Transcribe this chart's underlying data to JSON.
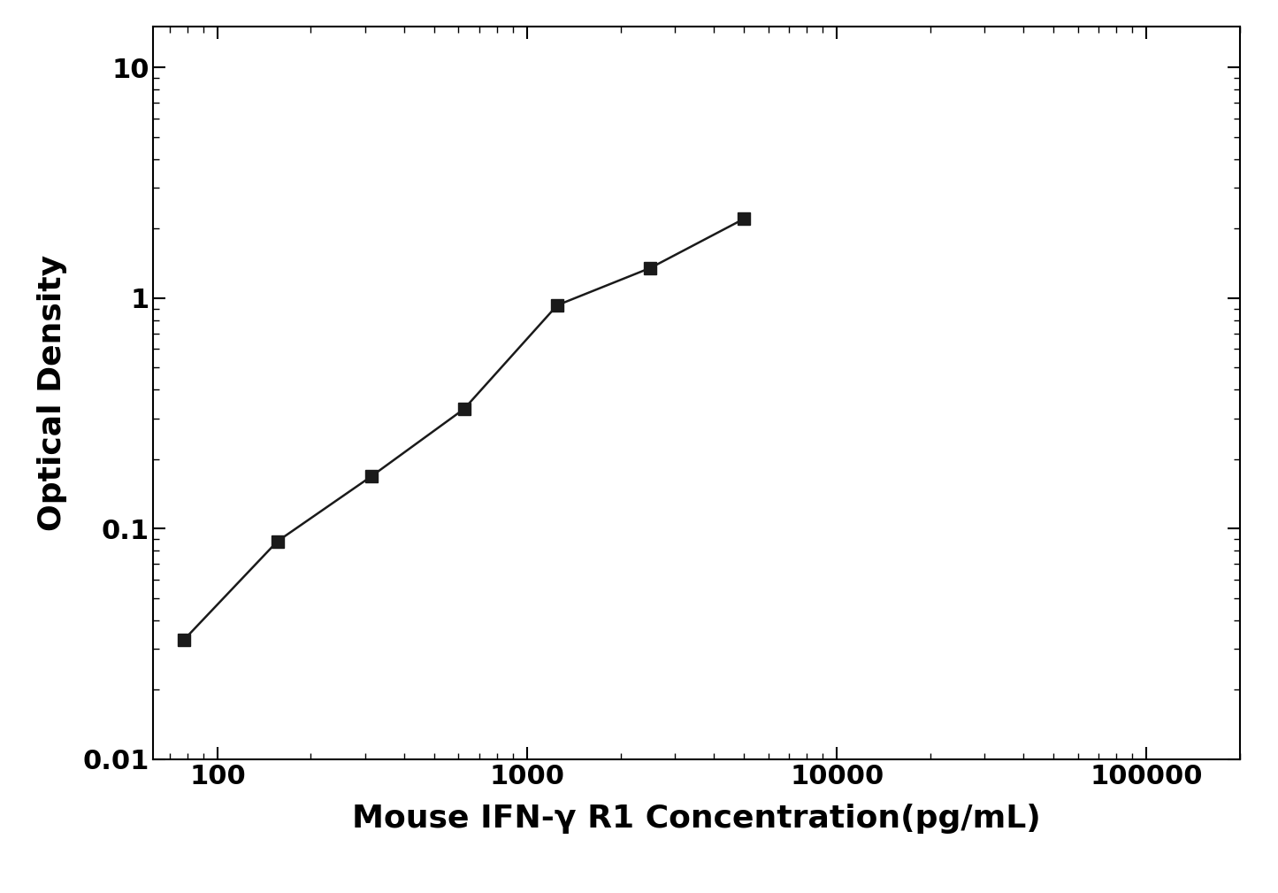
{
  "x_data": [
    78,
    156,
    313,
    625,
    1250,
    2500,
    5000
  ],
  "y_data": [
    0.033,
    0.088,
    0.168,
    0.33,
    0.93,
    1.35,
    2.2
  ],
  "xlim": [
    62,
    200000
  ],
  "ylim": [
    0.01,
    15
  ],
  "xlabel": "Mouse IFN-γ R1 Concentration(pg/mL)",
  "ylabel": "Optical Density",
  "marker": "s",
  "marker_color": "#1a1a1a",
  "marker_size": 10,
  "line_color": "#1a1a1a",
  "line_width": 1.8,
  "background_color": "#ffffff",
  "xlabel_fontsize": 26,
  "ylabel_fontsize": 26,
  "tick_fontsize": 22,
  "xlabel_fontweight": "bold",
  "ylabel_fontweight": "bold",
  "tick_fontweight": "bold"
}
